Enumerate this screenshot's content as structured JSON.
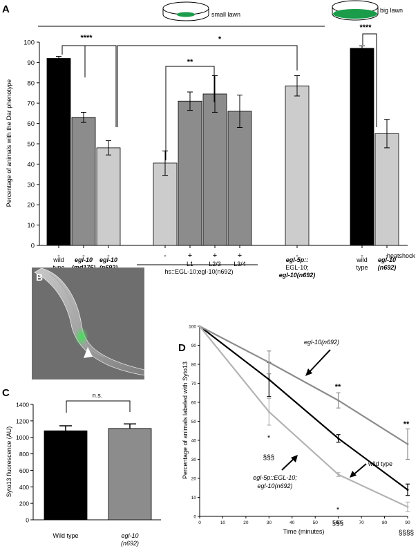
{
  "colors": {
    "wild_type": "#000000",
    "md176": "#8c8c8c",
    "light": "#cccccc",
    "line_wt": "#000000",
    "line_egl10": "#8c8c8c",
    "line_egl5p": "#b3b3b3",
    "lawn_green": "#1a9c4a",
    "micrograph_green": "#38d44a"
  },
  "panels": {
    "A": {
      "label": "A",
      "lawn_small": "small lawn",
      "lawn_big": "big lawn",
      "ylabel": "Percentage of animals with the Dar phenotype",
      "heatshock_label": "heatshock",
      "group_label_hs": "hs::EGL-10;egl-10(n692)",
      "sig": [
        "****",
        "*",
        "**",
        "****"
      ]
    },
    "B": {
      "label": "B"
    },
    "C": {
      "label": "C",
      "sig": "n.s."
    },
    "D": {
      "label": "D",
      "annot_egl10": "egl-10(n692)",
      "annot_wt": "wild type",
      "annot_egl5p_1": "egl-5p::EGL-10;",
      "annot_egl5p_2": "egl-10(n692)",
      "sig_60_top": "**",
      "sig_90_top": "**",
      "sig_30_star": "*",
      "sig_60_star": "*",
      "sig_30_sss": "§§§",
      "sig_60_sss": "§§§",
      "sig_90_sss": "§§§§"
    }
  },
  "chart_data": [
    {
      "panel": "A",
      "type": "bar",
      "ylabel": "Percentage of animals with the Dar phenotype",
      "ylim": [
        0,
        100
      ],
      "yticks": [
        0,
        10,
        20,
        30,
        40,
        50,
        60,
        70,
        80,
        90,
        100
      ],
      "bars": [
        {
          "label1": "wild",
          "label2": "type",
          "heatshock": "-",
          "value": 92,
          "err": 1,
          "color": "wild_type"
        },
        {
          "label1": "egl-10",
          "label2": "(md176)",
          "heatshock": "-",
          "value": 63,
          "err": 2.5,
          "color": "md176"
        },
        {
          "label1": "egl-10",
          "label2": "(n692)",
          "heatshock": "-",
          "value": 48,
          "err": 3.5,
          "color": "light"
        },
        {
          "label1": "",
          "label2": "",
          "heatshock": "-",
          "value": 40.5,
          "err": 6,
          "color": "light"
        },
        {
          "label1": "L1",
          "label2": "",
          "heatshock": "+",
          "value": 71,
          "err": 4.5,
          "color": "md176"
        },
        {
          "label1": "L2/3",
          "label2": "",
          "heatshock": "+",
          "value": 74.5,
          "err": 9,
          "color": "md176"
        },
        {
          "label1": "L3/4",
          "label2": "",
          "heatshock": "+",
          "value": 66,
          "err": 8,
          "color": "md176"
        },
        {
          "label1": "egl-5p::",
          "label2": "EGL-10;",
          "label3": "egl-10(n692)",
          "heatshock": "-",
          "value": 78.5,
          "err": 5,
          "color": "light"
        },
        {
          "label1": "wild",
          "label2": "type",
          "heatshock": "-",
          "value": 97,
          "err": 1.2,
          "color": "wild_type"
        },
        {
          "label1": "egl-10",
          "label2": "(n692)",
          "heatshock": "-",
          "value": 55,
          "err": 7,
          "color": "light"
        }
      ]
    },
    {
      "panel": "C",
      "type": "bar",
      "ylabel": "Syto13 fluorescence (AU)",
      "ylim": [
        0,
        1400
      ],
      "yticks": [
        0,
        200,
        400,
        600,
        800,
        1000,
        1200,
        1400
      ],
      "categories": [
        "Wild type",
        "egl-10\n(n692)"
      ],
      "values": [
        1080,
        1108
      ],
      "errors": [
        60,
        55
      ],
      "colors": [
        "wild_type",
        "md176"
      ]
    },
    {
      "panel": "D",
      "type": "line",
      "xlabel": "Time (minutes)",
      "ylabel": "Percentage of animals labeled with Syto13",
      "xlim": [
        0,
        90
      ],
      "ylim": [
        0,
        100
      ],
      "xticks": [
        0,
        10,
        20,
        30,
        40,
        50,
        60,
        70,
        80,
        90
      ],
      "yticks": [
        0,
        10,
        20,
        30,
        40,
        50,
        60,
        70,
        80,
        90,
        100
      ],
      "x": [
        0,
        30,
        60,
        90
      ],
      "series": [
        {
          "name": "wild type",
          "values": [
            100,
            72,
            41,
            14
          ],
          "errors": [
            0,
            9,
            2,
            3
          ],
          "color": "line_wt"
        },
        {
          "name": "egl-10(n692)",
          "values": [
            100,
            81,
            61,
            38
          ],
          "errors": [
            0,
            6,
            4,
            8
          ],
          "color": "line_egl10"
        },
        {
          "name": "egl-5p::EGL-10;egl-10(n692)",
          "values": [
            100,
            55,
            22,
            5
          ],
          "errors": [
            0,
            7,
            1,
            2.5
          ],
          "color": "line_egl5p"
        }
      ]
    }
  ]
}
